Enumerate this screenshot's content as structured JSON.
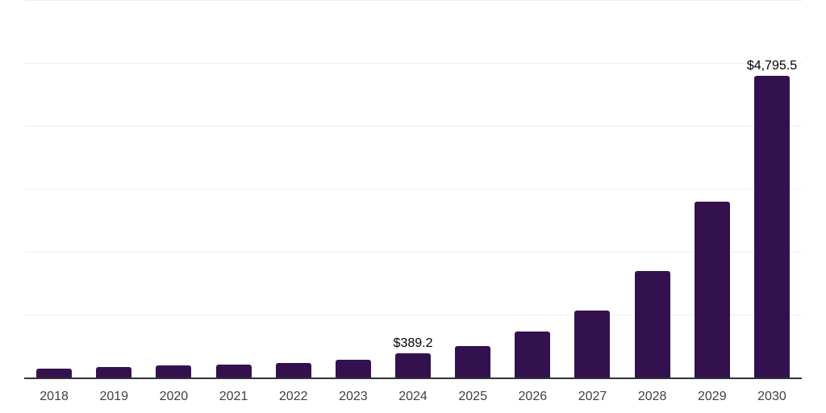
{
  "chart_data": {
    "type": "bar",
    "title": "",
    "xlabel": "",
    "ylabel": "",
    "categories": [
      "2018",
      "2019",
      "2020",
      "2021",
      "2022",
      "2023",
      "2024",
      "2025",
      "2026",
      "2027",
      "2028",
      "2029",
      "2030"
    ],
    "values": [
      135,
      168,
      190,
      207,
      228,
      277,
      389.2,
      506,
      729,
      1070,
      1692,
      2790,
      4795.5
    ],
    "ylim": [
      0,
      6000
    ],
    "gridline_step": 1000,
    "grid": "horizontal-only",
    "legend": "none",
    "y_axis_tick_labels": "none",
    "data_labels": [
      {
        "category": "2024",
        "text": "$389.2"
      },
      {
        "category": "2030",
        "text": "$4,795.5"
      }
    ],
    "colors": {
      "bar": "#33114e",
      "axis_line": "#333333",
      "gridline": "#eeeeee",
      "tick_label": "#404040",
      "data_label": "#000000",
      "background": "#ffffff"
    }
  }
}
